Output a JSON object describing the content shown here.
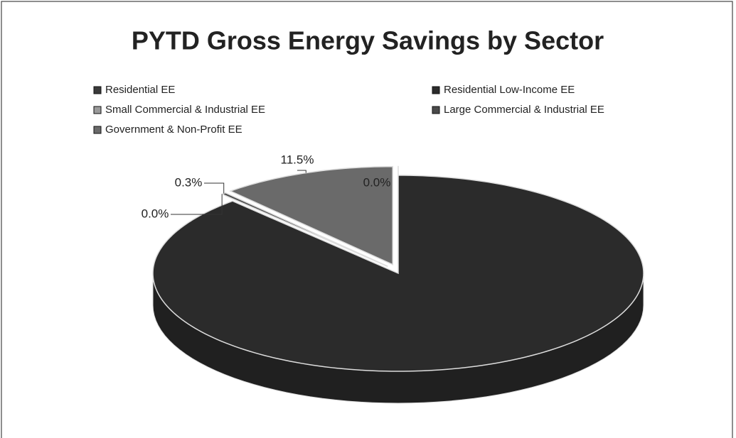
{
  "chart_data": {
    "type": "pie3d",
    "title": "PYTD Gross Energy Savings by Sector",
    "categories": [
      "Residential EE",
      "Residential Low-Income EE",
      "Small Commercial & Industrial EE",
      "Large Commercial & Industrial EE",
      "Government & Non-Profit EE"
    ],
    "values": [
      0.0,
      88.2,
      0.0,
      0.3,
      11.5
    ],
    "value_labels": [
      "0.0%",
      null,
      "0.0%",
      "0.3%",
      "11.5%"
    ],
    "colors": [
      "#3a3a3a",
      "#2b2b2b",
      "#9a9a9a",
      "#4a4a4a",
      "#6a6a6a"
    ],
    "legend": "top"
  }
}
